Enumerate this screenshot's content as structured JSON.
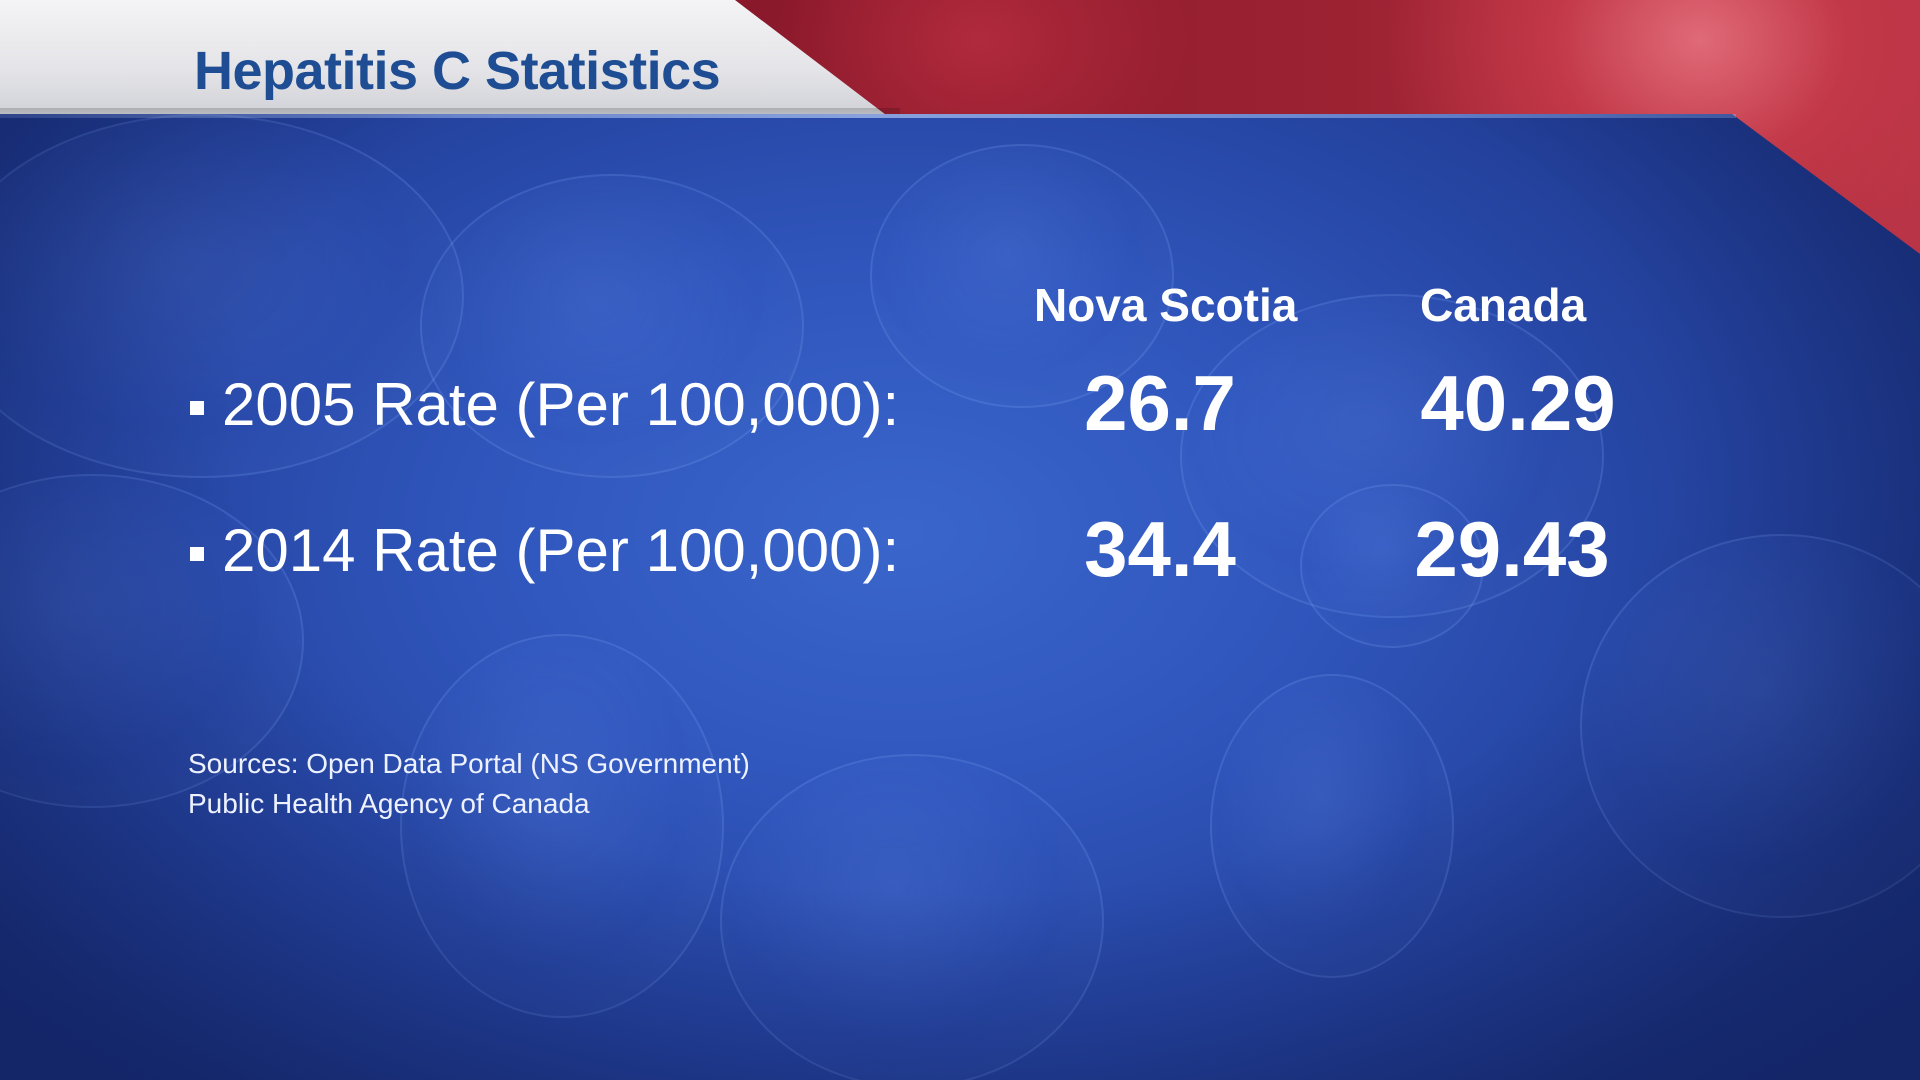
{
  "title": "Hepatitis C Statistics",
  "columns": [
    "Nova Scotia",
    "Canada"
  ],
  "rows": [
    {
      "label": "2005 Rate (Per 100,000):",
      "values": [
        "26.7",
        "40.29"
      ]
    },
    {
      "label": "2014 Rate (Per 100,000):",
      "values": [
        "34.4",
        "29.43"
      ]
    }
  ],
  "sources": [
    "Sources: Open Data Portal (NS Government)",
    "Public Health Agency of Canada"
  ],
  "colors": {
    "title_text": "#1e4d93",
    "panel_blue": "#2f55bb",
    "background_red": "#9c2232",
    "text_white": "#ffffff"
  }
}
